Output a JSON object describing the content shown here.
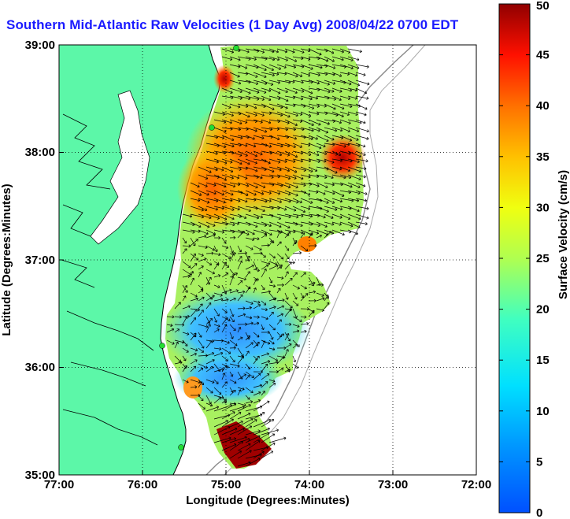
{
  "title": "Southern Mid-Atlantic Raw Velocities (1 Day Avg) 2008/04/22 0700 EDT",
  "x_axis": {
    "label": "Longitude (Degrees:Minutes)",
    "ticks": [
      "77:00",
      "76:00",
      "75:00",
      "74:00",
      "73:00",
      "72:00"
    ]
  },
  "y_axis": {
    "label": "Latitude (Degrees:Minutes)",
    "ticks": [
      "39:00",
      "38:00",
      "37:00",
      "36:00",
      "35:00"
    ]
  },
  "colorbar": {
    "label": "Surface Velocity (cm/s)",
    "ticks": [
      "0",
      "5",
      "10",
      "15",
      "20",
      "25",
      "30",
      "35",
      "40",
      "45",
      "50"
    ],
    "min": 0,
    "max": 50
  },
  "colors": {
    "land": "#5cf7a8",
    "title": "#1a1aff",
    "station": "#22dd33"
  }
}
